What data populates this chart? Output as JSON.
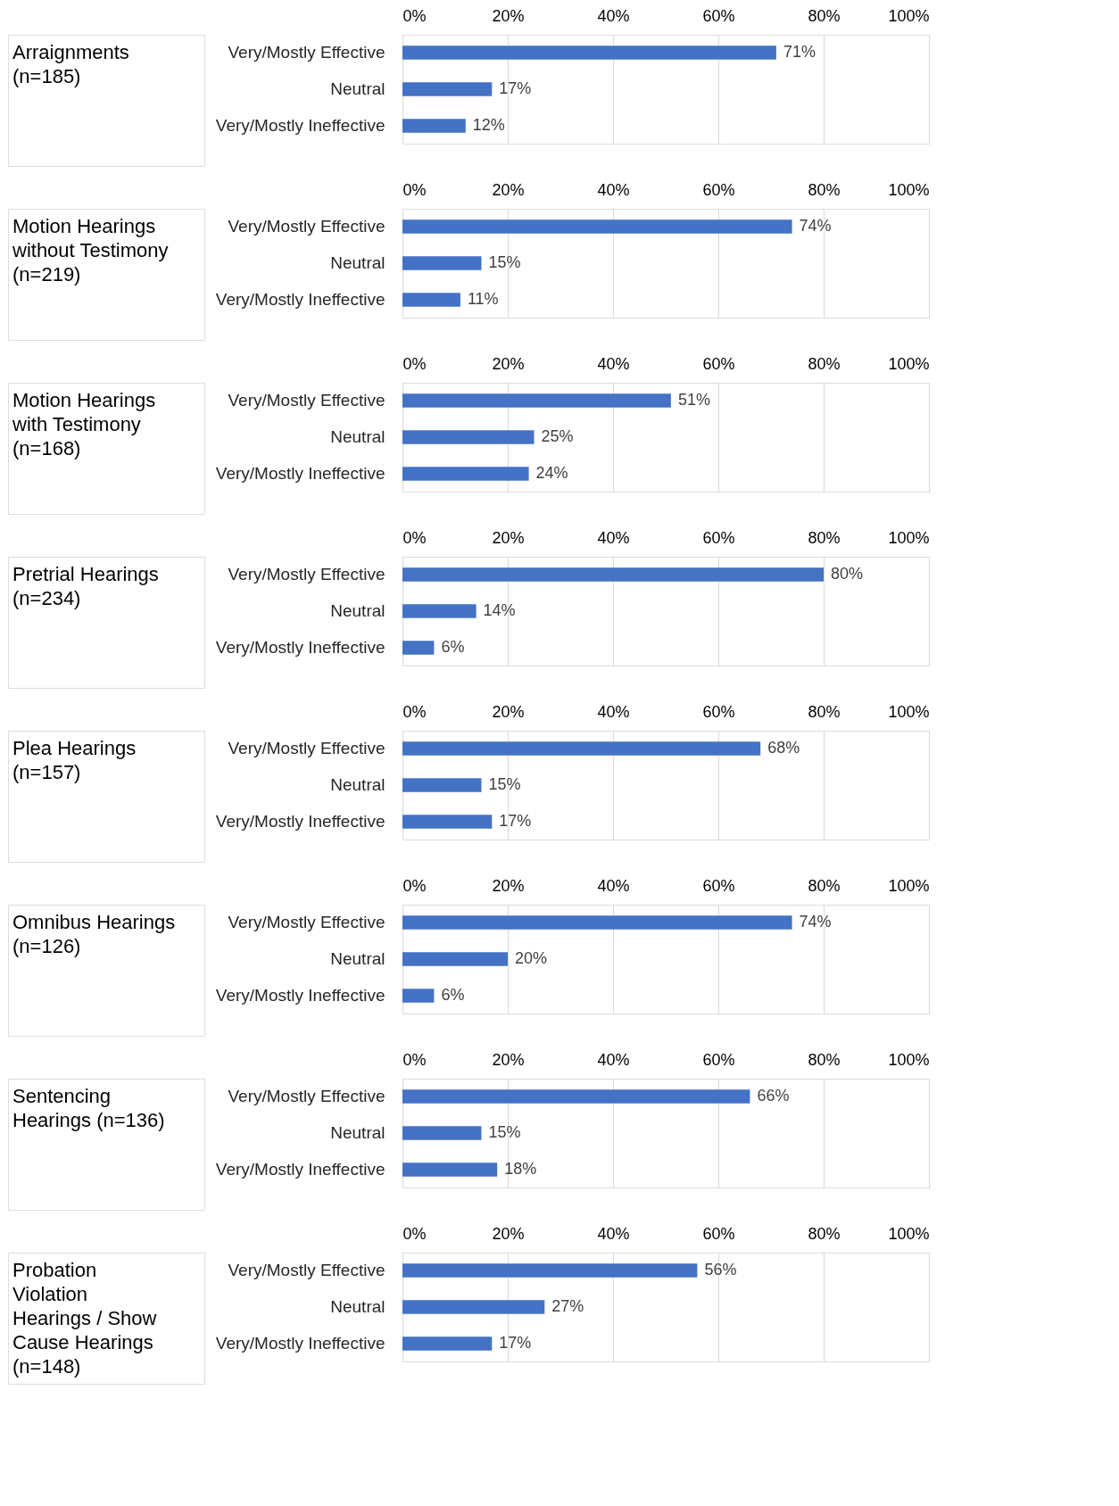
{
  "chart_data": [
    {
      "type": "bar",
      "orientation": "horizontal",
      "title": "Arraignments (n=185)",
      "categories": [
        "Very/Mostly Effective",
        "Neutral",
        "Very/Mostly Ineffective"
      ],
      "values": [
        71,
        17,
        12
      ],
      "value_labels": [
        "71%",
        "17%",
        "12%"
      ],
      "color": "#4472c4",
      "xlim": [
        0,
        100
      ],
      "xticks": [
        {
          "value": 0,
          "label": "0%"
        },
        {
          "value": 20,
          "label": "20%"
        },
        {
          "value": 40,
          "label": "40%"
        },
        {
          "value": 60,
          "label": "60%"
        },
        {
          "value": 80,
          "label": "80%"
        },
        {
          "value": 100,
          "label": "100%"
        }
      ],
      "grid": "x"
    },
    {
      "type": "bar",
      "orientation": "horizontal",
      "title": "Motion Hearings without Testimony (n=219)",
      "categories": [
        "Very/Mostly Effective",
        "Neutral",
        "Very/Mostly Ineffective"
      ],
      "values": [
        74,
        15,
        11
      ],
      "value_labels": [
        "74%",
        "15%",
        "11%"
      ],
      "color": "#4472c4",
      "xlim": [
        0,
        100
      ],
      "xticks": [
        {
          "value": 0,
          "label": "0%"
        },
        {
          "value": 20,
          "label": "20%"
        },
        {
          "value": 40,
          "label": "40%"
        },
        {
          "value": 60,
          "label": "60%"
        },
        {
          "value": 80,
          "label": "80%"
        },
        {
          "value": 100,
          "label": "100%"
        }
      ],
      "grid": "x"
    },
    {
      "type": "bar",
      "orientation": "horizontal",
      "title": "Motion Hearings with Testimony (n=168)",
      "categories": [
        "Very/Mostly Effective",
        "Neutral",
        "Very/Mostly Ineffective"
      ],
      "values": [
        51,
        25,
        24
      ],
      "value_labels": [
        "51%",
        "25%",
        "24%"
      ],
      "color": "#4472c4",
      "xlim": [
        0,
        100
      ],
      "xticks": [
        {
          "value": 0,
          "label": "0%"
        },
        {
          "value": 20,
          "label": "20%"
        },
        {
          "value": 40,
          "label": "40%"
        },
        {
          "value": 60,
          "label": "60%"
        },
        {
          "value": 80,
          "label": "80%"
        },
        {
          "value": 100,
          "label": "100%"
        }
      ],
      "grid": "x"
    },
    {
      "type": "bar",
      "orientation": "horizontal",
      "title": "Pretrial Hearings (n=234)",
      "categories": [
        "Very/Mostly Effective",
        "Neutral",
        "Very/Mostly Ineffective"
      ],
      "values": [
        80,
        14,
        6
      ],
      "value_labels": [
        "80%",
        "14%",
        "6%"
      ],
      "color": "#4472c4",
      "xlim": [
        0,
        100
      ],
      "xticks": [
        {
          "value": 0,
          "label": "0%"
        },
        {
          "value": 20,
          "label": "20%"
        },
        {
          "value": 40,
          "label": "40%"
        },
        {
          "value": 60,
          "label": "60%"
        },
        {
          "value": 80,
          "label": "80%"
        },
        {
          "value": 100,
          "label": "100%"
        }
      ],
      "grid": "x"
    },
    {
      "type": "bar",
      "orientation": "horizontal",
      "title": "Plea Hearings (n=157)",
      "categories": [
        "Very/Mostly Effective",
        "Neutral",
        "Very/Mostly Ineffective"
      ],
      "values": [
        68,
        15,
        17
      ],
      "value_labels": [
        "68%",
        "15%",
        "17%"
      ],
      "color": "#4472c4",
      "xlim": [
        0,
        100
      ],
      "xticks": [
        {
          "value": 0,
          "label": "0%"
        },
        {
          "value": 20,
          "label": "20%"
        },
        {
          "value": 40,
          "label": "40%"
        },
        {
          "value": 60,
          "label": "60%"
        },
        {
          "value": 80,
          "label": "80%"
        },
        {
          "value": 100,
          "label": "100%"
        }
      ],
      "grid": "x"
    },
    {
      "type": "bar",
      "orientation": "horizontal",
      "title": "Omnibus Hearings (n=126)",
      "categories": [
        "Very/Mostly Effective",
        "Neutral",
        "Very/Mostly Ineffective"
      ],
      "values": [
        74,
        20,
        6
      ],
      "value_labels": [
        "74%",
        "20%",
        "6%"
      ],
      "color": "#4472c4",
      "xlim": [
        0,
        100
      ],
      "xticks": [
        {
          "value": 0,
          "label": "0%"
        },
        {
          "value": 20,
          "label": "20%"
        },
        {
          "value": 40,
          "label": "40%"
        },
        {
          "value": 60,
          "label": "60%"
        },
        {
          "value": 80,
          "label": "80%"
        },
        {
          "value": 100,
          "label": "100%"
        }
      ],
      "grid": "x"
    },
    {
      "type": "bar",
      "orientation": "horizontal",
      "title": "Sentencing Hearings (n=136)",
      "categories": [
        "Very/Mostly Effective",
        "Neutral",
        "Very/Mostly Ineffective"
      ],
      "values": [
        66,
        15,
        18
      ],
      "value_labels": [
        "66%",
        "15%",
        "18%"
      ],
      "color": "#4472c4",
      "xlim": [
        0,
        100
      ],
      "xticks": [
        {
          "value": 0,
          "label": "0%"
        },
        {
          "value": 20,
          "label": "20%"
        },
        {
          "value": 40,
          "label": "40%"
        },
        {
          "value": 60,
          "label": "60%"
        },
        {
          "value": 80,
          "label": "80%"
        },
        {
          "value": 100,
          "label": "100%"
        }
      ],
      "grid": "x"
    },
    {
      "type": "bar",
      "orientation": "horizontal",
      "title": "Probation Violation Hearings / Show Cause Hearings (n=148)",
      "categories": [
        "Very/Mostly Effective",
        "Neutral",
        "Very/Mostly Ineffective"
      ],
      "values": [
        56,
        27,
        17
      ],
      "value_labels": [
        "56%",
        "27%",
        "17%"
      ],
      "color": "#4472c4",
      "xlim": [
        0,
        100
      ],
      "xticks": [
        {
          "value": 0,
          "label": "0%"
        },
        {
          "value": 20,
          "label": "20%"
        },
        {
          "value": 40,
          "label": "40%"
        },
        {
          "value": 60,
          "label": "60%"
        },
        {
          "value": 80,
          "label": "80%"
        },
        {
          "value": 100,
          "label": "100%"
        }
      ],
      "grid": "x"
    }
  ]
}
